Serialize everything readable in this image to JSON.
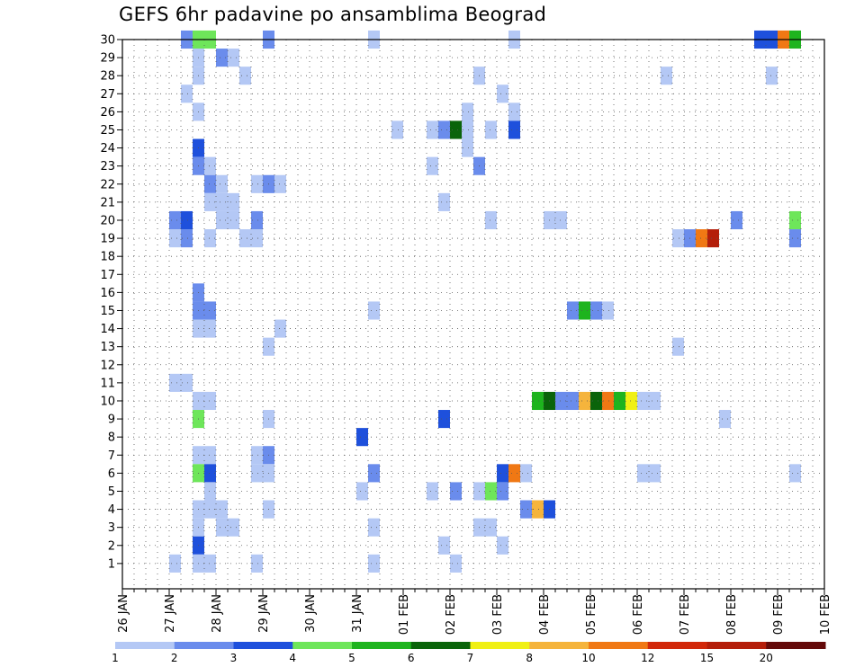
{
  "chart_data": {
    "type": "heatmap",
    "title": "GEFS 6hr padavine po ansamblima Beograd",
    "xlabel": "",
    "ylabel": "",
    "x_tick_labels": [
      "26 JAN",
      "27 JAN",
      "28 JAN",
      "29 JAN",
      "30 JAN",
      "31 JAN",
      "01 FEB",
      "02 FEB",
      "03 FEB",
      "04 FEB",
      "05 FEB",
      "06 FEB",
      "07 FEB",
      "08 FEB",
      "09 FEB",
      "10 FEB"
    ],
    "x_steps_per_day": 4,
    "x_range_days": [
      0,
      15
    ],
    "y_tick_labels": [
      "1",
      "2",
      "3",
      "4",
      "5",
      "6",
      "7",
      "8",
      "9",
      "10",
      "11",
      "12",
      "13",
      "14",
      "15",
      "16",
      "17",
      "18",
      "19",
      "20",
      "21",
      "22",
      "23",
      "24",
      "25",
      "26",
      "27",
      "28",
      "29",
      "30"
    ],
    "y_range": [
      0,
      30
    ],
    "grid": true,
    "colorbar": {
      "position": "bottom",
      "labels": [
        "1",
        "2",
        "3",
        "4",
        "5",
        "6",
        "7",
        "8",
        "10",
        "12",
        "15",
        "20"
      ],
      "colors": [
        "#b4c8f5",
        "#6a8cec",
        "#1e50dc",
        "#6ee65a",
        "#1eb41e",
        "#0a640a",
        "#f0f014",
        "#f5b43c",
        "#f07814",
        "#d2280a",
        "#b41e0a",
        "#640a0a"
      ]
    },
    "cells": [
      {
        "m": 30,
        "t": [
          [
            5,
            1
          ],
          [
            6,
            3
          ],
          [
            7,
            3
          ],
          [
            12,
            1
          ],
          [
            21,
            0
          ],
          [
            33,
            0
          ],
          [
            54,
            2
          ],
          [
            55,
            2
          ],
          [
            56,
            8
          ],
          [
            57,
            4
          ]
        ]
      },
      {
        "m": 29,
        "t": [
          [
            6,
            0
          ],
          [
            8,
            1
          ],
          [
            9,
            0
          ]
        ]
      },
      {
        "m": 28,
        "t": [
          [
            6,
            0
          ],
          [
            10,
            0
          ],
          [
            30,
            0
          ],
          [
            46,
            0
          ],
          [
            55,
            0
          ]
        ]
      },
      {
        "m": 27,
        "t": [
          [
            5,
            0
          ],
          [
            32,
            0
          ]
        ]
      },
      {
        "m": 26,
        "t": [
          [
            6,
            0
          ],
          [
            29,
            0
          ],
          [
            33,
            0
          ]
        ]
      },
      {
        "m": 25,
        "t": [
          [
            23,
            0
          ],
          [
            26,
            0
          ],
          [
            27,
            1
          ],
          [
            28,
            5
          ],
          [
            29,
            0
          ],
          [
            31,
            0
          ],
          [
            33,
            2
          ]
        ]
      },
      {
        "m": 24,
        "t": [
          [
            6,
            2
          ],
          [
            29,
            0
          ]
        ]
      },
      {
        "m": 23,
        "t": [
          [
            6,
            1
          ],
          [
            7,
            0
          ],
          [
            26,
            0
          ],
          [
            30,
            1
          ]
        ]
      },
      {
        "m": 22,
        "t": [
          [
            7,
            1
          ],
          [
            8,
            0
          ],
          [
            11,
            0
          ],
          [
            12,
            1
          ],
          [
            13,
            0
          ]
        ]
      },
      {
        "m": 21,
        "t": [
          [
            7,
            0
          ],
          [
            8,
            0
          ],
          [
            9,
            0
          ],
          [
            27,
            0
          ]
        ]
      },
      {
        "m": 20,
        "t": [
          [
            4,
            1
          ],
          [
            5,
            2
          ],
          [
            8,
            0
          ],
          [
            9,
            0
          ],
          [
            11,
            1
          ],
          [
            31,
            0
          ],
          [
            36,
            0
          ],
          [
            37,
            0
          ],
          [
            52,
            1
          ],
          [
            57,
            3
          ]
        ]
      },
      {
        "m": 19,
        "t": [
          [
            4,
            0
          ],
          [
            5,
            1
          ],
          [
            7,
            0
          ],
          [
            10,
            0
          ],
          [
            11,
            0
          ],
          [
            47,
            0
          ],
          [
            48,
            1
          ],
          [
            49,
            8
          ],
          [
            50,
            10
          ],
          [
            57,
            1
          ]
        ]
      },
      {
        "m": 16,
        "t": [
          [
            6,
            1
          ]
        ]
      },
      {
        "m": 15,
        "t": [
          [
            6,
            1
          ],
          [
            7,
            1
          ],
          [
            21,
            0
          ],
          [
            38,
            1
          ],
          [
            39,
            4
          ],
          [
            40,
            1
          ],
          [
            41,
            0
          ]
        ]
      },
      {
        "m": 14,
        "t": [
          [
            6,
            0
          ],
          [
            7,
            0
          ],
          [
            13,
            0
          ]
        ]
      },
      {
        "m": 13,
        "t": [
          [
            12,
            0
          ],
          [
            47,
            0
          ]
        ]
      },
      {
        "m": 11,
        "t": [
          [
            4,
            0
          ],
          [
            5,
            0
          ]
        ]
      },
      {
        "m": 10,
        "t": [
          [
            6,
            0
          ],
          [
            7,
            0
          ],
          [
            35,
            4
          ],
          [
            36,
            5
          ],
          [
            37,
            1
          ],
          [
            38,
            1
          ],
          [
            39,
            7
          ],
          [
            40,
            5
          ],
          [
            41,
            8
          ],
          [
            42,
            4
          ],
          [
            43,
            6
          ],
          [
            44,
            0
          ],
          [
            45,
            0
          ]
        ]
      },
      {
        "m": 9,
        "t": [
          [
            6,
            3
          ],
          [
            12,
            0
          ],
          [
            27,
            2
          ],
          [
            51,
            0
          ]
        ]
      },
      {
        "m": 8,
        "t": [
          [
            20,
            2
          ]
        ]
      },
      {
        "m": 7,
        "t": [
          [
            6,
            0
          ],
          [
            7,
            0
          ],
          [
            11,
            0
          ],
          [
            12,
            1
          ]
        ]
      },
      {
        "m": 6,
        "t": [
          [
            6,
            3
          ],
          [
            7,
            2
          ],
          [
            11,
            0
          ],
          [
            12,
            0
          ],
          [
            21,
            1
          ],
          [
            32,
            2
          ],
          [
            33,
            8
          ],
          [
            34,
            0
          ],
          [
            44,
            0
          ],
          [
            45,
            0
          ],
          [
            57,
            0
          ]
        ]
      },
      {
        "m": 5,
        "t": [
          [
            7,
            0
          ],
          [
            20,
            0
          ],
          [
            26,
            0
          ],
          [
            28,
            1
          ],
          [
            30,
            0
          ],
          [
            31,
            3
          ],
          [
            32,
            1
          ]
        ]
      },
      {
        "m": 4,
        "t": [
          [
            6,
            0
          ],
          [
            7,
            0
          ],
          [
            8,
            0
          ],
          [
            12,
            0
          ],
          [
            34,
            1
          ],
          [
            35,
            7
          ],
          [
            36,
            2
          ]
        ]
      },
      {
        "m": 3,
        "t": [
          [
            6,
            0
          ],
          [
            8,
            0
          ],
          [
            9,
            0
          ],
          [
            21,
            0
          ],
          [
            30,
            0
          ],
          [
            31,
            0
          ]
        ]
      },
      {
        "m": 2,
        "t": [
          [
            6,
            2
          ],
          [
            27,
            0
          ],
          [
            32,
            0
          ]
        ]
      },
      {
        "m": 1,
        "t": [
          [
            4,
            0
          ],
          [
            6,
            0
          ],
          [
            7,
            0
          ],
          [
            11,
            0
          ],
          [
            21,
            0
          ],
          [
            28,
            0
          ]
        ]
      }
    ]
  }
}
